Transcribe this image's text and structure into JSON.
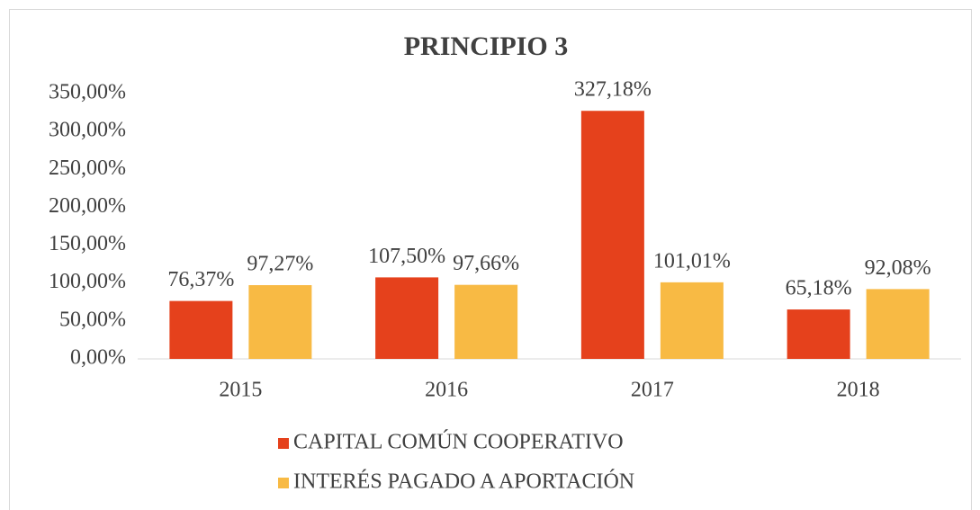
{
  "chart_data": {
    "type": "bar",
    "title": "PRINCIPIO 3",
    "categories": [
      "2015",
      "2016",
      "2017",
      "2018"
    ],
    "series": [
      {
        "name": "CAPITAL COMÚN COOPERATIVO",
        "color": "#e5411c",
        "values": [
          76.37,
          107.5,
          327.18,
          65.18
        ],
        "value_labels": [
          "76,37%",
          "107,50%",
          "327,18%",
          "65,18%"
        ]
      },
      {
        "name": "INTERÉS PAGADO A APORTACIÓN",
        "color": "#f8ba44",
        "values": [
          97.27,
          97.66,
          101.01,
          92.08
        ],
        "value_labels": [
          "97,27%",
          "97,66%",
          "101,01%",
          "92,08%"
        ]
      }
    ],
    "ylim": [
      0,
      350
    ],
    "yticks": [
      {
        "value": 0,
        "label": "0,00%"
      },
      {
        "value": 50,
        "label": "50,00%"
      },
      {
        "value": 100,
        "label": "100,00%"
      },
      {
        "value": 150,
        "label": "150,00%"
      },
      {
        "value": 200,
        "label": "200,00%"
      },
      {
        "value": 250,
        "label": "250,00%"
      },
      {
        "value": 300,
        "label": "300,00%"
      },
      {
        "value": 350,
        "label": "350,00%"
      }
    ],
    "grid": false,
    "legend": "bottom"
  }
}
